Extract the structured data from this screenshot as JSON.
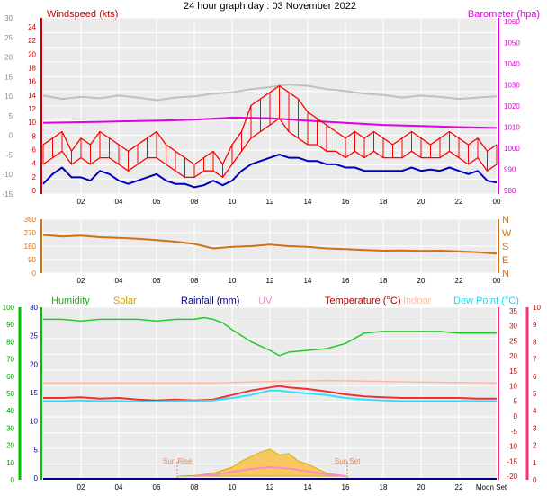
{
  "title": "24 hour graph day : 03 November 2022",
  "colors": {
    "wind": "#ff0000",
    "wind_avg": "#0000c0",
    "gust_grey": "#c0c0c0",
    "barometer": "#e000e0",
    "direction": "#d07018",
    "humidity": "#22cc22",
    "solar": "#d4b000",
    "solar_fill": "#f7c860",
    "rainfall": "#000080",
    "uv": "#ff88cc",
    "temperature": "#b00000",
    "temp_line": "#ee3030",
    "indoor": "#ffb8a0",
    "dewpoint": "#30e0ff",
    "sun": "#e08858",
    "hum_axis": "#00c000",
    "temp_axis": "#ff3080",
    "plot_bg": "#ebebeb"
  },
  "x_ticks": [
    "02",
    "04",
    "06",
    "08",
    "10",
    "12",
    "14",
    "16",
    "18",
    "20",
    "22",
    "00"
  ],
  "x_ticks_bottom": [
    "02",
    "04",
    "06",
    "08",
    "10",
    "12",
    "14",
    "16",
    "18",
    "20",
    "22",
    "Moon Set"
  ],
  "chart_data": [
    {
      "type": "line",
      "title": "Windspeed (kts)",
      "title_right": "Barometer (hpa)",
      "ylim": [
        0,
        25
      ],
      "ylim_right": [
        980,
        1060
      ],
      "left_ticks": [
        "0",
        "2",
        "4",
        "6",
        "8",
        "10",
        "12",
        "14",
        "16",
        "18",
        "20",
        "22",
        "24"
      ],
      "outer_ticks": [
        "-15",
        "-10",
        "-5",
        "0",
        "5",
        "10",
        "15",
        "20",
        "25",
        "30"
      ],
      "right_ticks": [
        "980",
        "990",
        "1000",
        "1010",
        "1020",
        "1030",
        "1040",
        "1050",
        "1060"
      ],
      "x_hours_start": 0,
      "x_hours_end": 24,
      "series": [
        {
          "key": "barometer",
          "x": [
            0,
            3,
            6,
            8,
            9,
            10,
            12,
            14,
            16,
            18,
            20,
            22,
            24
          ],
          "y": [
            1012,
            1012.5,
            1013,
            1013.5,
            1014,
            1014.5,
            1014.2,
            1013,
            1012,
            1011,
            1010.5,
            1010,
            1009.6
          ]
        },
        {
          "key": "gust_grey",
          "x": [
            0,
            1,
            2,
            3,
            4,
            5,
            6,
            7,
            8,
            9,
            10,
            11,
            12,
            13,
            14,
            15,
            16,
            17,
            18,
            19,
            20,
            21,
            22,
            23,
            24
          ],
          "y": [
            14.5,
            14,
            14.3,
            14.1,
            14.5,
            14.2,
            13.8,
            14.2,
            14.4,
            14.8,
            15,
            15.5,
            15.8,
            16.2,
            16,
            15.5,
            15.2,
            14.8,
            14.6,
            14.2,
            14.5,
            14.3,
            14,
            14.2,
            14.4
          ]
        },
        {
          "key": "wind_max",
          "x": [
            0,
            0.5,
            1,
            1.5,
            2,
            2.5,
            3,
            3.5,
            4,
            4.5,
            5,
            5.5,
            6,
            6.5,
            7,
            7.5,
            8,
            8.5,
            9,
            9.5,
            10,
            10.5,
            11,
            11.5,
            12,
            12.5,
            13,
            13.5,
            14,
            14.5,
            15,
            15.5,
            16,
            16.5,
            17,
            17.5,
            18,
            18.5,
            19,
            19.5,
            20,
            20.5,
            21,
            21.5,
            22,
            22.5,
            23,
            23.5,
            24
          ],
          "y": [
            7,
            8,
            9,
            6,
            8,
            7,
            9,
            8,
            7,
            6,
            7,
            8,
            9,
            7,
            6,
            5,
            4,
            5,
            6,
            4,
            7,
            9,
            13,
            14,
            15,
            16,
            15,
            14,
            12,
            11,
            10,
            9,
            8,
            9,
            8,
            9,
            8,
            7,
            8,
            9,
            8,
            7,
            8,
            9,
            8,
            7,
            8,
            6,
            7
          ]
        },
        {
          "key": "wind",
          "x": [
            0,
            0.5,
            1,
            1.5,
            2,
            2.5,
            3,
            3.5,
            4,
            4.5,
            5,
            5.5,
            6,
            6.5,
            7,
            7.5,
            8,
            8.5,
            9,
            9.5,
            10,
            10.5,
            11,
            11.5,
            12,
            12.5,
            13,
            13.5,
            14,
            14.5,
            15,
            15.5,
            16,
            16.5,
            17,
            17.5,
            18,
            18.5,
            19,
            19.5,
            20,
            20.5,
            21,
            21.5,
            22,
            22.5,
            23,
            23.5,
            24
          ],
          "y": [
            4,
            5,
            6,
            4,
            5,
            4,
            5,
            5,
            4,
            3,
            4,
            5,
            5,
            4,
            3,
            2,
            2,
            3,
            3,
            2,
            4,
            6,
            8,
            9,
            10,
            11,
            9,
            8,
            7,
            7,
            6,
            6,
            5,
            6,
            5,
            6,
            5,
            5,
            5,
            6,
            5,
            5,
            5,
            6,
            5,
            4,
            5,
            3,
            4
          ]
        },
        {
          "key": "wind_avg",
          "x": [
            0,
            0.5,
            1,
            1.5,
            2,
            2.5,
            3,
            3.5,
            4,
            4.5,
            5,
            5.5,
            6,
            6.5,
            7,
            7.5,
            8,
            8.5,
            9,
            9.5,
            10,
            10.5,
            11,
            11.5,
            12,
            12.5,
            13,
            13.5,
            14,
            14.5,
            15,
            15.5,
            16,
            16.5,
            17,
            17.5,
            18,
            18.5,
            19,
            19.5,
            20,
            20.5,
            21,
            21.5,
            22,
            22.5,
            23,
            23.5,
            24
          ],
          "y": [
            1,
            2.5,
            3.5,
            2,
            2,
            1.5,
            3,
            2.5,
            1.5,
            1,
            1.5,
            2,
            2.5,
            1.5,
            1,
            1,
            0.5,
            0.8,
            1.5,
            0.8,
            1.5,
            3,
            4,
            4.5,
            5,
            5.5,
            5,
            5,
            4.5,
            4.5,
            4,
            4,
            3.5,
            3.5,
            3,
            3,
            3,
            3,
            3,
            3.5,
            3,
            3.2,
            3,
            3.5,
            3,
            2.5,
            3,
            1.5,
            1.2
          ]
        }
      ]
    },
    {
      "type": "line",
      "title": "Wind direction",
      "ylim": [
        0,
        360
      ],
      "left_ticks": [
        "0",
        "90",
        "180",
        "270",
        "360"
      ],
      "right_labels": [
        "N",
        "W",
        "S",
        "E",
        "N"
      ],
      "series": [
        {
          "key": "direction",
          "x": [
            0,
            1,
            2,
            3,
            4,
            5,
            6,
            7,
            8,
            9,
            10,
            11,
            12,
            13,
            14,
            15,
            16,
            17,
            18,
            19,
            20,
            21,
            22,
            23,
            24
          ],
          "y": [
            255,
            245,
            250,
            240,
            235,
            230,
            220,
            210,
            195,
            165,
            175,
            180,
            190,
            180,
            175,
            165,
            160,
            155,
            150,
            152,
            148,
            150,
            145,
            140,
            130
          ]
        }
      ]
    },
    {
      "type": "line",
      "labels": {
        "humidity": "Humidity",
        "solar": "Solar",
        "rainfall": "Rainfall (mm)",
        "uv": "UV",
        "temperature": "Temperature (°C)",
        "indoor": "Indoor",
        "dewpoint": "Dew Point (°C)",
        "sunrise": "Sun Rise",
        "sunset": "Sun Set"
      },
      "ylim": [
        -20,
        35
      ],
      "humidity_ticks": [
        "0",
        "10",
        "20",
        "30",
        "40",
        "50",
        "60",
        "70",
        "80",
        "90",
        "100"
      ],
      "rain_ticks": [
        "0",
        "5",
        "10",
        "15",
        "20",
        "25",
        "30"
      ],
      "temp_ticks": [
        "-20",
        "-15",
        "-10",
        "-5",
        "0",
        "5",
        "10",
        "15",
        "20",
        "25",
        "30",
        "35"
      ],
      "uv_ticks": [
        "0",
        "1",
        "2",
        "3",
        "4",
        "5",
        "6",
        "7",
        "8",
        "9",
        "10"
      ],
      "sunrise_hour": 7.1,
      "sunset_hour": 16.1,
      "series": [
        {
          "key": "humidity",
          "x": [
            0,
            1,
            2,
            3,
            4,
            5,
            6,
            7,
            8,
            8.5,
            9,
            9.5,
            10,
            11,
            12,
            12.5,
            13,
            14,
            15,
            16,
            17,
            18,
            19,
            20,
            21,
            22,
            23,
            24
          ],
          "y": [
            93,
            93,
            92,
            93,
            93,
            93,
            92,
            93,
            93,
            94,
            93,
            91,
            87,
            80,
            75,
            72,
            74,
            75,
            76,
            79,
            85,
            86,
            86,
            86,
            86,
            85,
            85,
            85
          ]
        },
        {
          "key": "indoor",
          "x": [
            0,
            6,
            9,
            12,
            15,
            18,
            21,
            24
          ],
          "y": [
            11,
            11,
            11,
            11.5,
            11.8,
            11.5,
            11.2,
            11
          ]
        },
        {
          "key": "temperature",
          "x": [
            0,
            1,
            2,
            3,
            4,
            5,
            6,
            7,
            8,
            9,
            10,
            11,
            12,
            12.5,
            13,
            14,
            15,
            16,
            17,
            18,
            19,
            20,
            21,
            22,
            23,
            24
          ],
          "y": [
            6,
            6,
            6.2,
            5.8,
            6,
            5.5,
            5.2,
            5.5,
            5.2,
            5.5,
            7,
            8.5,
            9.5,
            10,
            9.5,
            9,
            8.2,
            7.2,
            6.5,
            6.2,
            6,
            6,
            6,
            6,
            5.8,
            5.8
          ]
        },
        {
          "key": "dewpoint",
          "x": [
            0,
            1,
            2,
            3,
            4,
            5,
            6,
            7,
            8,
            9,
            10,
            11,
            12,
            12.5,
            13,
            14,
            15,
            16,
            17,
            18,
            19,
            20,
            21,
            22,
            23,
            24
          ],
          "y": [
            5,
            5,
            5.2,
            5,
            5,
            4.8,
            4.8,
            5,
            5,
            5.2,
            6,
            7,
            8.5,
            8.5,
            8,
            7.5,
            7,
            6,
            5.5,
            5.2,
            5,
            5,
            5,
            5,
            5,
            5
          ]
        },
        {
          "key": "solar",
          "x": [
            7.1,
            8,
            9,
            10,
            10.5,
            11,
            11.5,
            12,
            12.5,
            13,
            13.5,
            14,
            14.5,
            15,
            16.1
          ],
          "y": [
            -20,
            -19.8,
            -19,
            -17,
            -15,
            -13.5,
            -12,
            -11,
            -13,
            -12.5,
            -15,
            -16,
            -17.5,
            -19,
            -20
          ]
        },
        {
          "key": "uv",
          "x": [
            8,
            9,
            10,
            11,
            12,
            13,
            14,
            15,
            16
          ],
          "y": [
            -20,
            -19.6,
            -18.6,
            -17.6,
            -17,
            -17.5,
            -18.4,
            -19.4,
            -20
          ]
        },
        {
          "key": "rainfall",
          "x": [
            0,
            24
          ],
          "y": [
            0,
            0
          ]
        }
      ]
    }
  ]
}
